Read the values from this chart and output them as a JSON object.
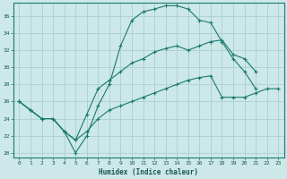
{
  "xlabel": "Humidex (Indice chaleur)",
  "bg_color": "#cce8e8",
  "grid_color": "#aacfcf",
  "line_color": "#1a7a6e",
  "xlim": [
    -0.5,
    23.5
  ],
  "ylim": [
    19.5,
    37.5
  ],
  "xticks": [
    0,
    1,
    2,
    3,
    4,
    5,
    6,
    7,
    8,
    9,
    10,
    11,
    12,
    13,
    14,
    15,
    16,
    17,
    18,
    19,
    20,
    21,
    22,
    23
  ],
  "yticks": [
    20,
    22,
    24,
    26,
    28,
    30,
    32,
    34,
    36
  ],
  "line1_x": [
    0,
    1,
    2,
    3,
    4,
    5,
    6,
    7,
    8,
    9,
    10,
    11,
    12,
    13,
    14,
    15,
    16,
    17,
    18,
    19,
    20,
    21
  ],
  "line1_y": [
    26.0,
    25.0,
    24.0,
    24.0,
    22.5,
    20.0,
    22.0,
    25.5,
    28.0,
    32.5,
    35.5,
    36.5,
    36.8,
    37.2,
    37.2,
    36.8,
    35.5,
    35.2,
    33.0,
    31.0,
    29.5,
    27.5
  ],
  "line2_x": [
    0,
    1,
    2,
    3,
    4,
    5,
    6,
    7,
    8,
    9,
    10,
    11,
    12,
    13,
    14,
    15,
    16,
    17,
    18,
    19,
    20,
    21
  ],
  "line2_y": [
    26.0,
    25.0,
    24.0,
    24.0,
    22.5,
    21.5,
    24.5,
    27.5,
    28.5,
    29.5,
    30.5,
    31.0,
    31.8,
    32.2,
    32.5,
    32.0,
    32.5,
    33.0,
    33.2,
    31.5,
    31.0,
    29.5
  ],
  "line3_x": [
    0,
    1,
    2,
    3,
    4,
    5,
    6,
    7,
    8,
    9,
    10,
    11,
    12,
    13,
    14,
    15,
    16,
    17,
    18,
    19,
    20,
    21,
    22,
    23
  ],
  "line3_y": [
    26.0,
    25.0,
    24.0,
    24.0,
    22.5,
    21.5,
    22.5,
    24.0,
    25.0,
    25.5,
    26.0,
    26.5,
    27.0,
    27.5,
    28.0,
    28.5,
    28.8,
    29.0,
    26.5,
    26.5,
    26.5,
    27.0,
    27.5,
    27.5
  ]
}
